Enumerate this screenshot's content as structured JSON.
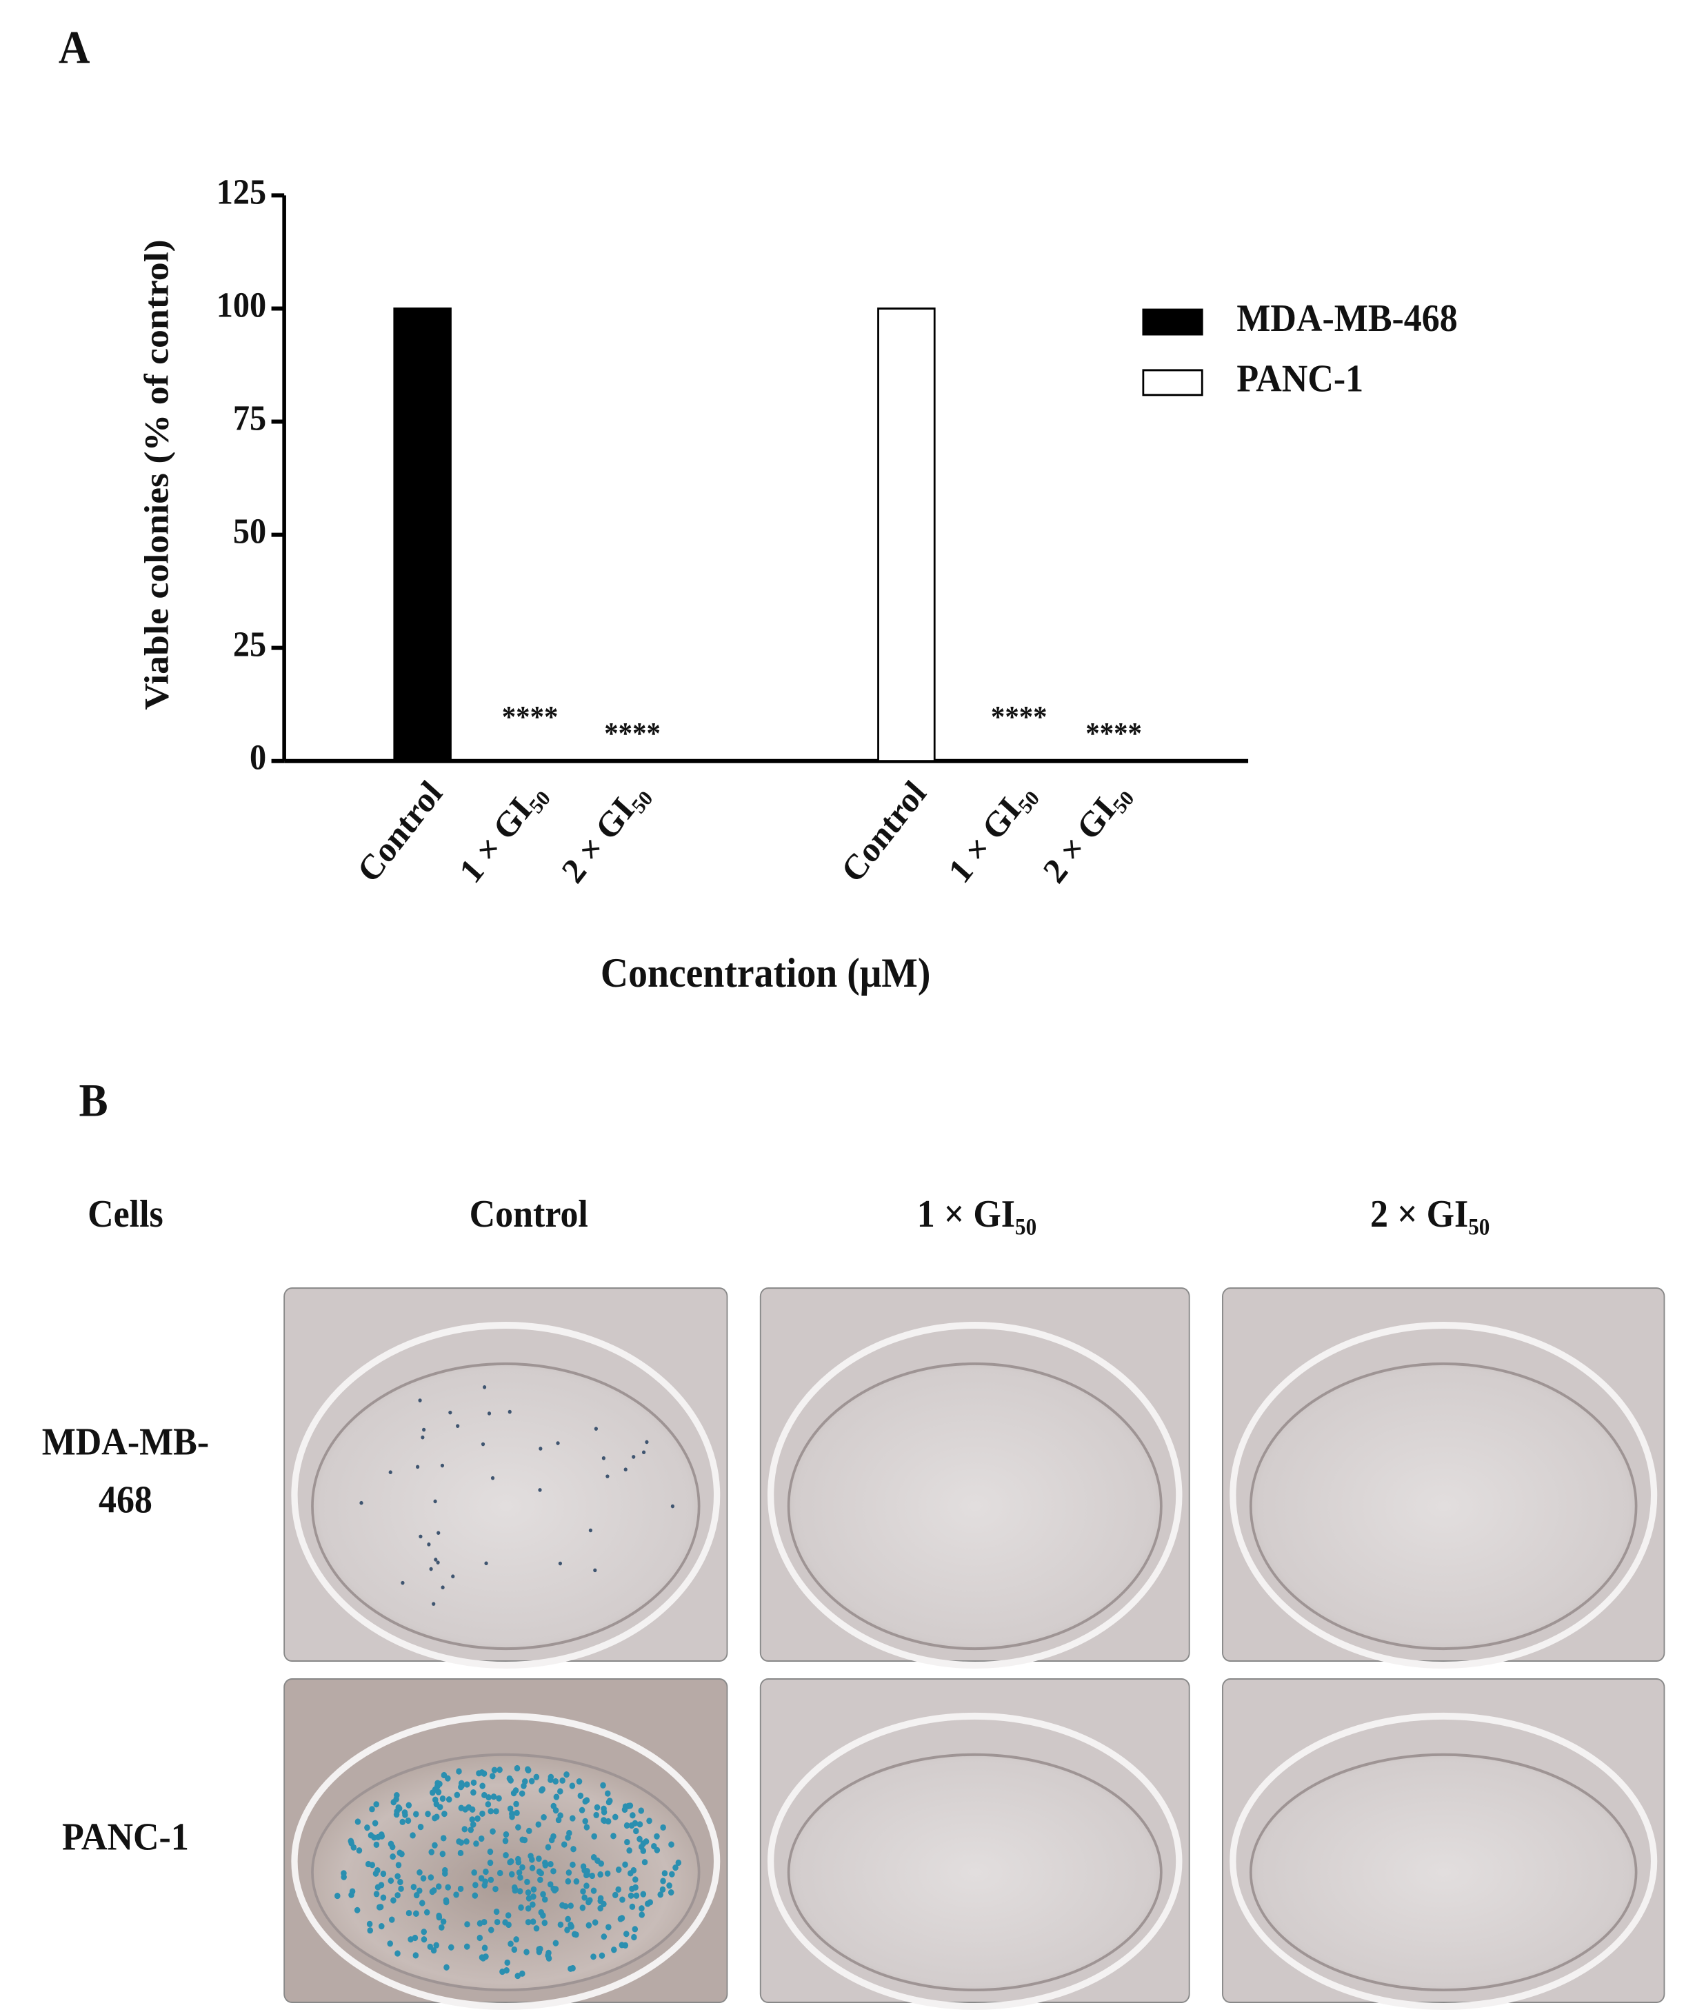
{
  "chart_data": {
    "type": "bar",
    "panel_label": "A",
    "y_label": "Viable colonies (% of control)",
    "x_label": "Concentration (μM)",
    "categories": [
      "Control",
      "1 × GI₅₀",
      "2 × GI₅₀",
      "Control",
      "1 × GI₅₀",
      "2 × GI₅₀"
    ],
    "series": [
      {
        "name": "MDA-MB-468",
        "color": "#000000",
        "values": [
          100,
          0,
          0,
          null,
          null,
          null
        ],
        "significance": [
          null,
          "****",
          "****",
          null,
          null,
          null
        ]
      },
      {
        "name": "PANC-1",
        "color": "#ffffff",
        "values": [
          null,
          null,
          null,
          100,
          0,
          0
        ],
        "significance": [
          null,
          null,
          null,
          null,
          "****",
          "****"
        ]
      }
    ],
    "ylim": [
      0,
      125
    ],
    "yticks": [
      0,
      25,
      50,
      75,
      100,
      125
    ],
    "grid": false,
    "legend": "right"
  },
  "panel_b": {
    "label": "B",
    "header": [
      "Cells",
      "Control",
      "1 × GI₅₀",
      "2 × GI₅₀"
    ],
    "rows": [
      [
        "MDA-MB-",
        "468"
      ],
      [
        "PANC-1"
      ]
    ]
  }
}
